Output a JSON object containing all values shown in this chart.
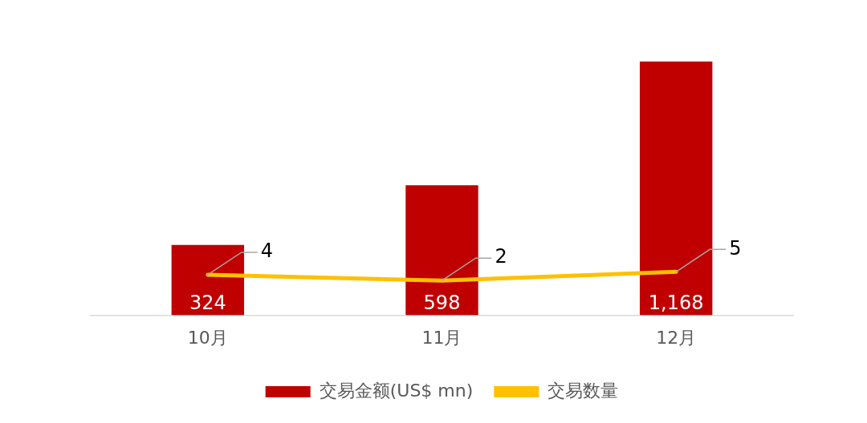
{
  "chart_data": {
    "type": "bar",
    "categories": [
      "10月",
      "11月",
      "12月"
    ],
    "series": [
      {
        "name": "交易金额(US$ mn)",
        "color": "#c00000",
        "values": [
          324,
          598,
          1168
        ],
        "value_labels": [
          "324",
          "598",
          "1,168"
        ]
      },
      {
        "name": "交易数量",
        "type": "line",
        "axis": "y2",
        "color": "#ffc000",
        "values": [
          4,
          2,
          5
        ],
        "value_labels": [
          "4",
          "2",
          "5"
        ]
      }
    ],
    "legend": "bottom",
    "grid": false,
    "marker": "none"
  }
}
